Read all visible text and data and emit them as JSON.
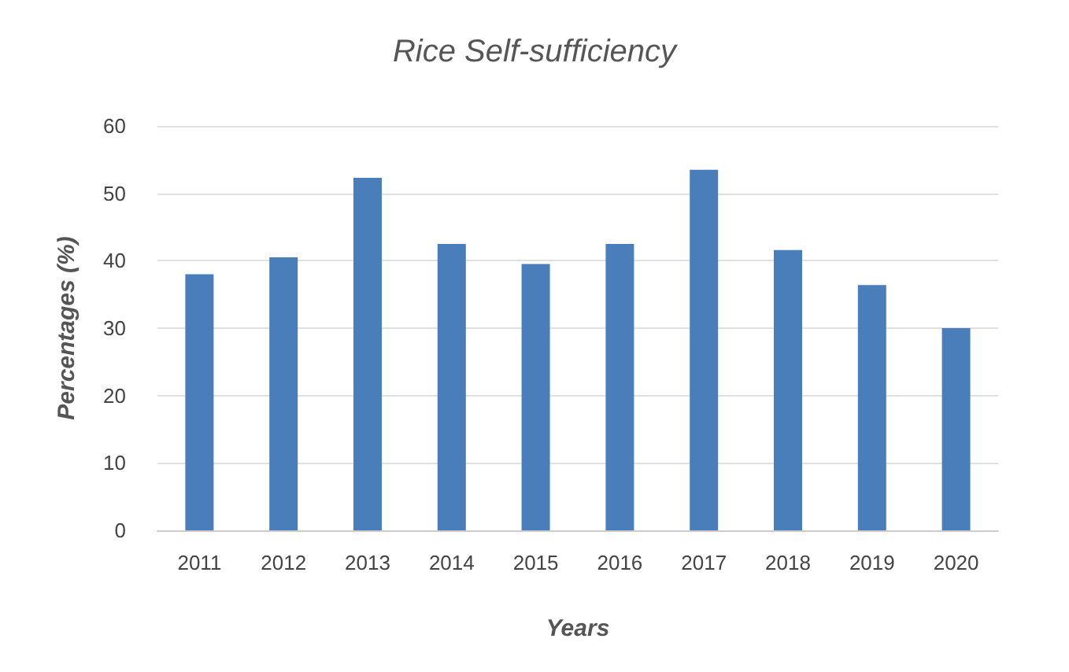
{
  "chart_data": {
    "type": "bar",
    "title": "Rice Self-sufficiency",
    "xlabel": "Years",
    "ylabel": "Percentages (%)",
    "categories": [
      "2011",
      "2012",
      "2013",
      "2014",
      "2015",
      "2016",
      "2017",
      "2018",
      "2019",
      "2020"
    ],
    "values": [
      38,
      40.5,
      52.3,
      42.5,
      39.5,
      42.5,
      53.5,
      41.6,
      36.4,
      30
    ],
    "color": "#4a7ebb",
    "ylim": [
      0,
      60
    ],
    "yticks": [
      0,
      10,
      20,
      30,
      40,
      50,
      60
    ],
    "grid": "y"
  }
}
